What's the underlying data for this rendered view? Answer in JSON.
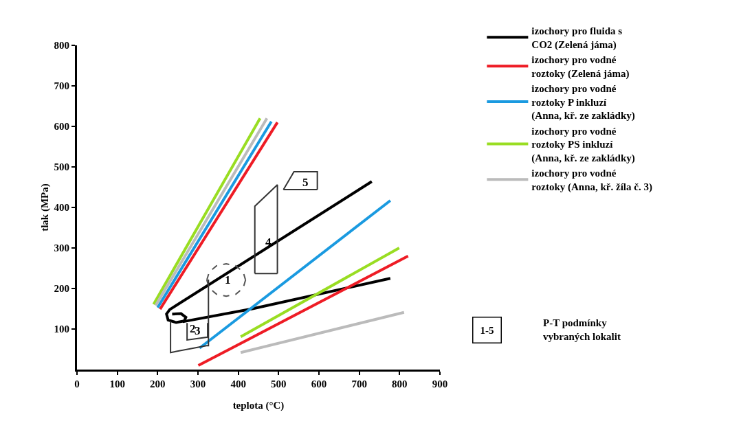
{
  "chart_data": {
    "type": "line",
    "xlabel": "teplota (°C)",
    "ylabel": "tlak (MPa)",
    "xlim": [
      0,
      900
    ],
    "xticks": [
      0,
      100,
      200,
      300,
      400,
      500,
      600,
      700,
      800,
      900
    ],
    "ylim": [
      0,
      800
    ],
    "yticks": [
      100,
      200,
      300,
      400,
      500,
      600,
      700,
      800
    ],
    "grid": false,
    "legend": "right",
    "marker": "none",
    "line_style": "solid",
    "series": [
      {
        "name": "izochory pro fluida s\nCO2 (Zelená jáma)",
        "color": "#000000",
        "x": [
          731,
          230,
          222,
          226,
          246,
          266,
          270,
          258,
          236,
          null,
          262,
          435,
          777
        ],
        "values": [
          464,
          148,
          137,
          122,
          116,
          120,
          129,
          138,
          137,
          null,
          118,
          150,
          225
        ]
      },
      {
        "name": "izochory pro vodné\nroztoky (Zelená jáma)",
        "color": "#ee1c25",
        "x": [
          206,
          497,
          null,
          301,
          821
        ],
        "values": [
          149,
          610,
          null,
          10,
          280
        ]
      },
      {
        "name": "izochory pro vodné\nroztoky P inkluzí\n(Anna, kř. ze zakládky)",
        "color": "#1a9ae0",
        "x": [
          200,
          482,
          null,
          304,
          777
        ],
        "values": [
          153,
          612,
          null,
          53,
          417
        ]
      },
      {
        "name": "izochory pro vodné\nroztoky PS inkluzí\n(Anna, kř. ze zakládky)",
        "color": "#99dd22",
        "x": [
          190,
          454,
          null,
          406,
          799
        ],
        "values": [
          161,
          620,
          null,
          81,
          300
        ]
      },
      {
        "name": "izochory pro vodné\nroztoky (Anna, kř. žíla č. 3)",
        "color": "#bbbbbb",
        "x": [
          195,
          471,
          null,
          406,
          811
        ],
        "values": [
          158,
          620,
          null,
          42,
          141
        ]
      },
      {
        "color": "#555555",
        "line_style": "dashed",
        "x": [
          322,
          328,
          346,
          370,
          394,
          412,
          418,
          null,
          322,
          328,
          346,
          370,
          394,
          412,
          418
        ],
        "values": [
          221,
          241,
          256,
          261,
          256,
          241,
          221,
          null,
          221,
          201,
          186,
          181,
          186,
          201,
          221
        ]
      },
      {
        "color": "#333333",
        "x": [
          232,
          232,
          321,
          326,
          326,
          null,
          273,
          273,
          324,
          324,
          null,
          441,
          441,
          497,
          497,
          null,
          441,
          497,
          null,
          512,
          538,
          596,
          596,
          null,
          512,
          596
        ],
        "values": [
          119,
          42,
          59,
          59,
          222,
          null,
          115,
          73,
          80,
          115,
          null,
          237,
          403,
          456,
          237,
          null,
          237,
          237,
          null,
          444,
          488,
          488,
          444,
          null,
          444,
          444
        ]
      }
    ],
    "annotations": [
      "1",
      "2",
      "3",
      "4",
      "5",
      "1-5",
      "P-T podmínky\nvybraných lokalit"
    ]
  }
}
